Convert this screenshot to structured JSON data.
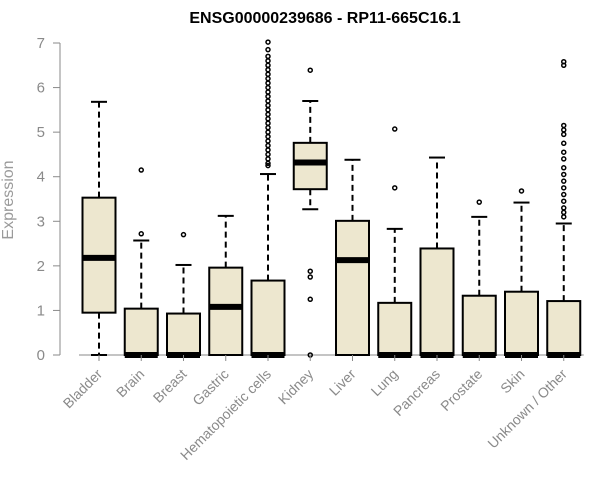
{
  "chart_data": {
    "type": "boxplot",
    "title": "ENSG00000239686 - RP11-665C16.1",
    "xlabel": "",
    "ylabel": "Expression",
    "ylim": [
      0,
      7
    ],
    "yticks": [
      0,
      1,
      2,
      3,
      4,
      5,
      6,
      7
    ],
    "box_fill": "#ede7cf",
    "box_stroke": "#000000",
    "categories": [
      "Bladder",
      "Brain",
      "Breast",
      "Gastric",
      "Hematopoietic cells",
      "Kidney",
      "Liver",
      "Lung",
      "Pancreas",
      "Prostate",
      "Skin",
      "Unknown / Other"
    ],
    "boxes": [
      {
        "min": 0.0,
        "q1": 0.95,
        "median": 2.18,
        "q3": 3.53,
        "max": 5.68,
        "outliers": []
      },
      {
        "min": 0.0,
        "q1": 0.0,
        "median": 0.0,
        "q3": 1.04,
        "max": 2.57,
        "outliers": [
          2.72,
          4.15
        ]
      },
      {
        "min": 0.0,
        "q1": 0.0,
        "median": 0.0,
        "q3": 0.93,
        "max": 2.02,
        "outliers": [
          2.7
        ]
      },
      {
        "min": 0.0,
        "q1": 0.0,
        "median": 1.08,
        "q3": 1.96,
        "max": 3.12,
        "outliers": []
      },
      {
        "min": 0.0,
        "q1": 0.0,
        "median": 0.0,
        "q3": 1.67,
        "max": 4.06,
        "outliers": [
          4.25,
          4.3,
          4.4,
          4.5,
          4.6,
          4.7,
          4.8,
          4.9,
          5.0,
          5.1,
          5.2,
          5.3,
          5.4,
          5.5,
          5.6,
          5.7,
          5.8,
          5.9,
          6.0,
          6.1,
          6.2,
          6.3,
          6.4,
          6.5,
          6.6,
          6.7,
          6.85,
          7.02
        ]
      },
      {
        "min": 3.27,
        "q1": 3.72,
        "median": 4.32,
        "q3": 4.76,
        "max": 5.7,
        "outliers": [
          6.39,
          1.88,
          1.75,
          1.25,
          0.0
        ]
      },
      {
        "min": 0.0,
        "q1": 0.0,
        "median": 2.13,
        "q3": 3.01,
        "max": 4.38,
        "outliers": []
      },
      {
        "min": 0.0,
        "q1": 0.0,
        "median": 0.0,
        "q3": 1.17,
        "max": 2.83,
        "outliers": [
          3.75,
          5.07
        ]
      },
      {
        "min": 0.0,
        "q1": 0.0,
        "median": 0.0,
        "q3": 2.39,
        "max": 4.43,
        "outliers": []
      },
      {
        "min": 0.0,
        "q1": 0.0,
        "median": 0.0,
        "q3": 1.33,
        "max": 3.1,
        "outliers": [
          3.43
        ]
      },
      {
        "min": 0.0,
        "q1": 0.0,
        "median": 0.0,
        "q3": 1.42,
        "max": 3.42,
        "outliers": [
          3.68
        ]
      },
      {
        "min": 0.0,
        "q1": 0.0,
        "median": 0.0,
        "q3": 1.21,
        "max": 2.95,
        "outliers": [
          3.1,
          3.2,
          3.3,
          3.45,
          3.6,
          3.75,
          3.9,
          4.05,
          4.2,
          4.4,
          4.55,
          4.75,
          4.95,
          5.05,
          5.15,
          6.5,
          6.58
        ]
      }
    ]
  }
}
